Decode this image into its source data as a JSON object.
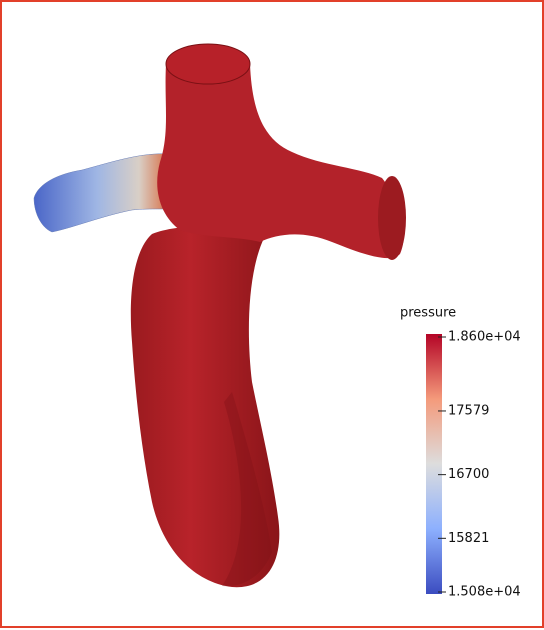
{
  "legend": {
    "title": "pressure",
    "ticks": [
      {
        "value": 18600,
        "label": "1.860e+04"
      },
      17579,
      16700,
      15821,
      {
        "value": 15080,
        "label": "1.508e+04"
      }
    ]
  }
}
